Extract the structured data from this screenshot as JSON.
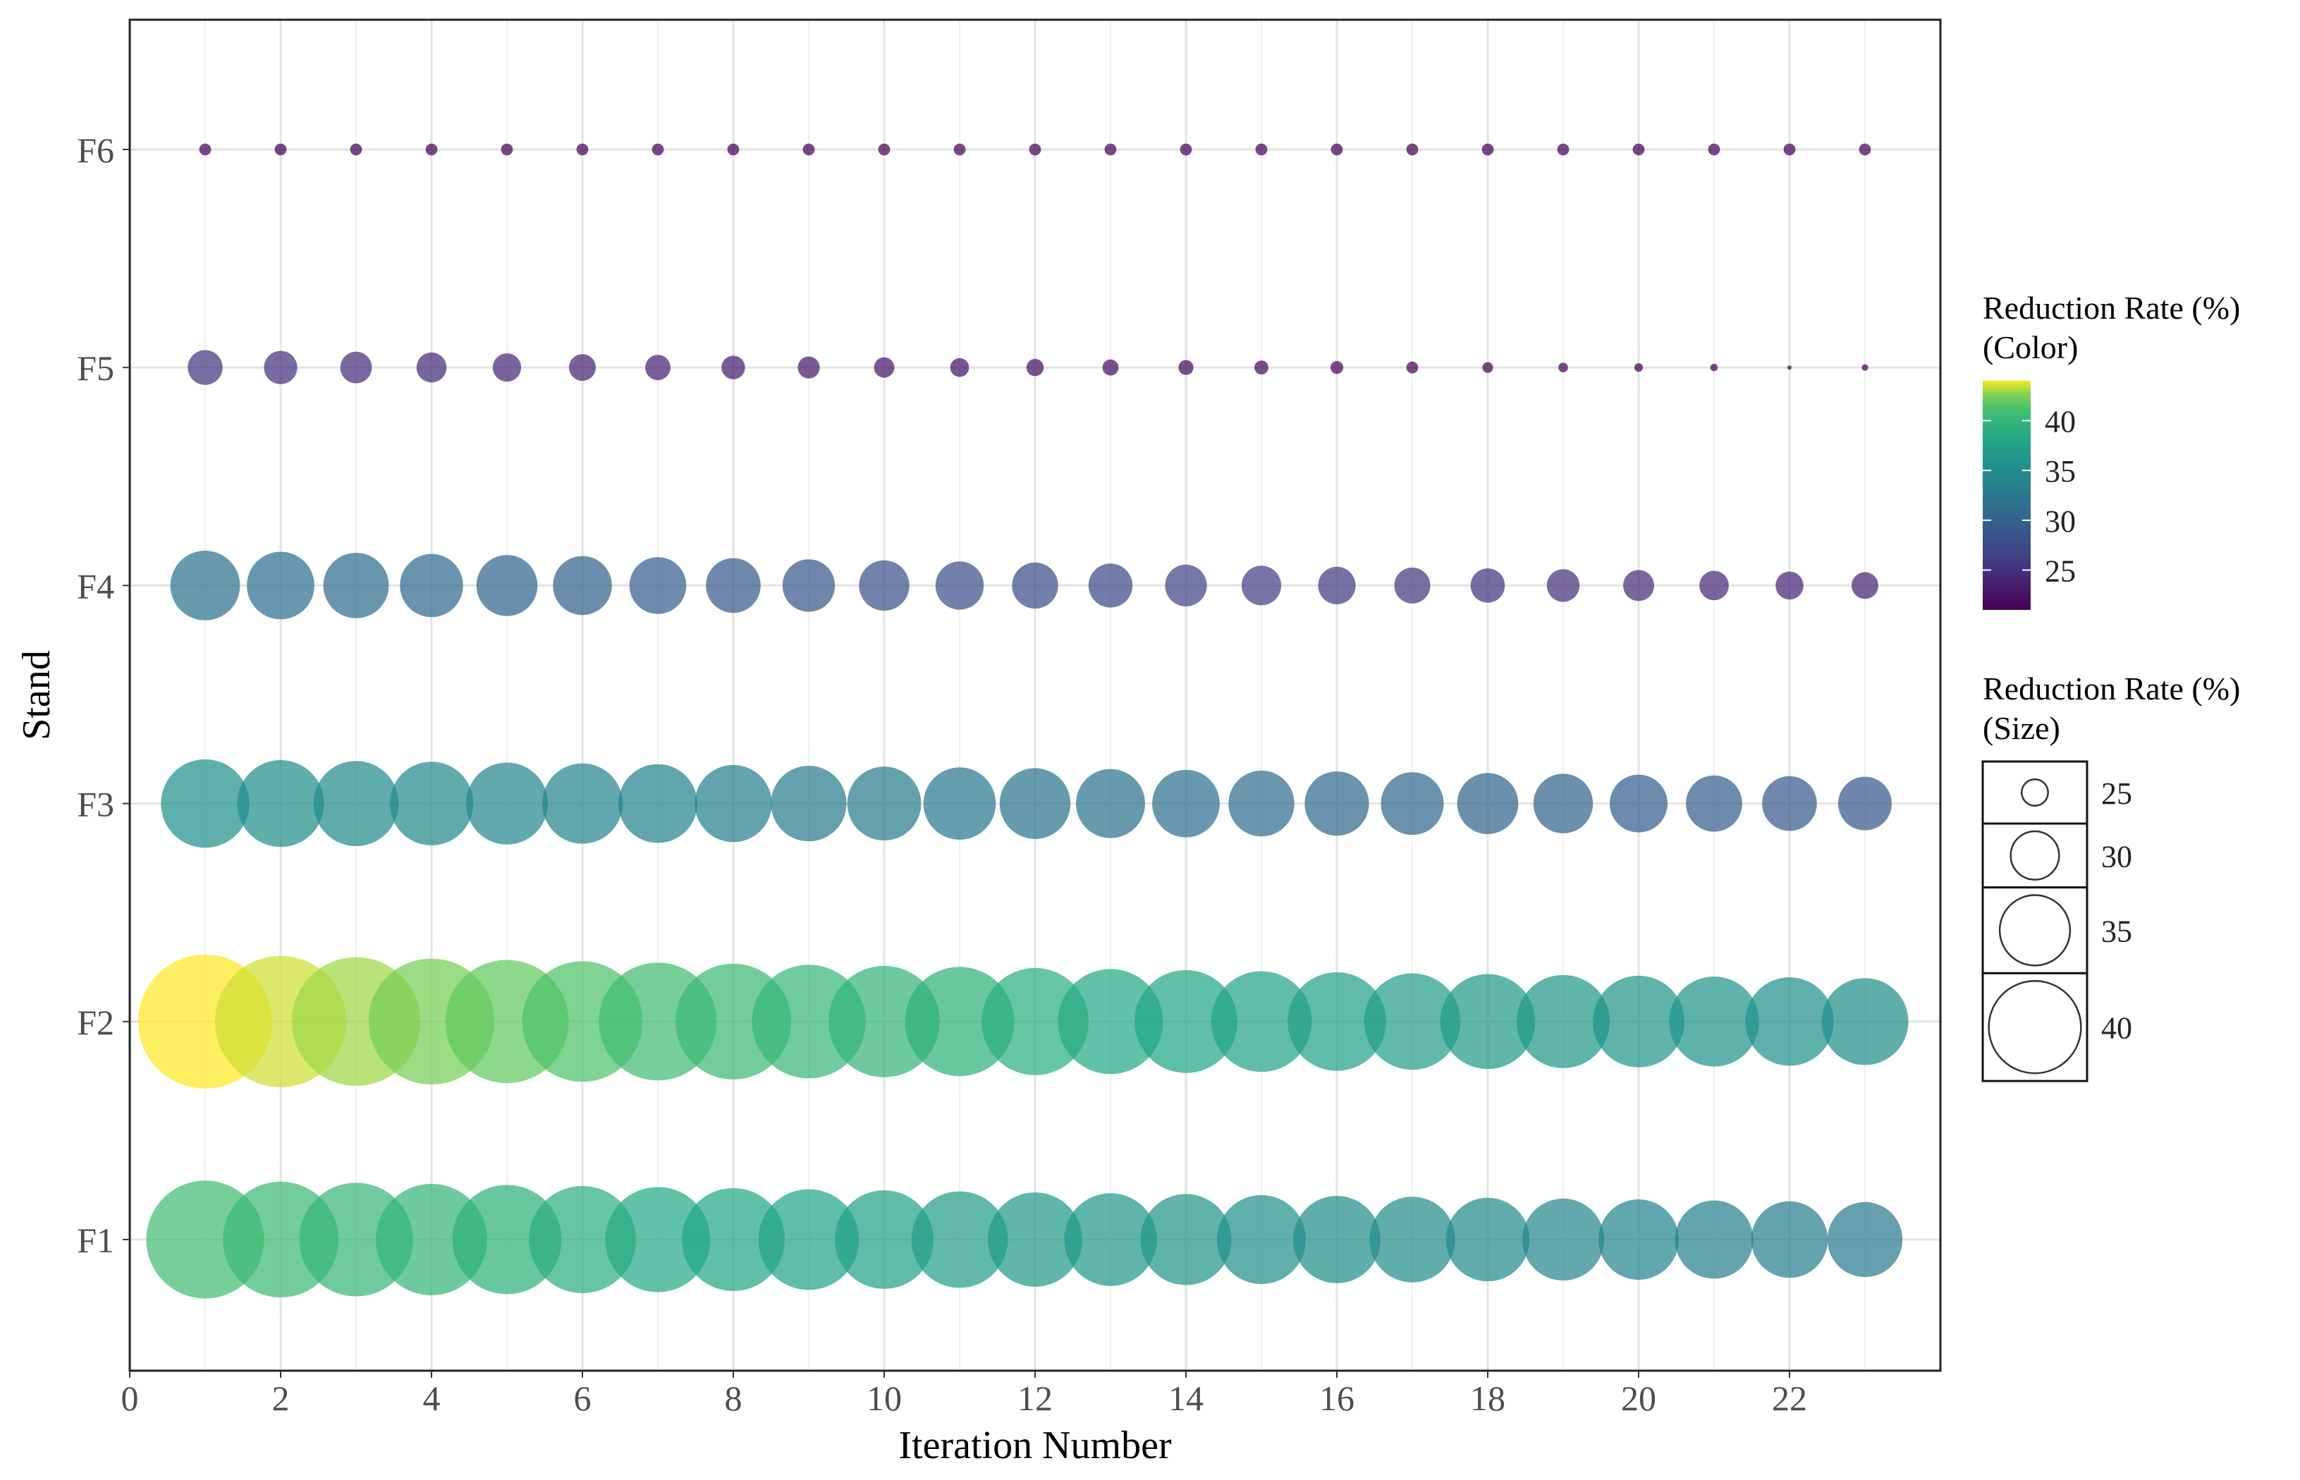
{
  "chart_data": {
    "type": "scatter",
    "title": "",
    "xlabel": "Iteration Number",
    "ylabel": "Stand",
    "xlim": [
      0,
      24
    ],
    "x_ticks": [
      0,
      2,
      4,
      6,
      8,
      10,
      12,
      14,
      16,
      18,
      20,
      22
    ],
    "categories": [
      "F1",
      "F2",
      "F3",
      "F4",
      "F5",
      "F6"
    ],
    "grid": true,
    "legend_position": "right",
    "color_scale": {
      "title_line1": "Reduction Rate (%)",
      "title_line2": "(Color)",
      "palette": "viridis",
      "range": [
        21,
        44
      ],
      "ticks": [
        25,
        30,
        35,
        40
      ]
    },
    "size_scale": {
      "title_line1": "Reduction Rate (%)",
      "title_line2": "(Size)",
      "breaks": [
        25,
        30,
        35,
        40
      ]
    },
    "series": [
      {
        "stand": "F1",
        "x": [
          1,
          2,
          3,
          4,
          5,
          6,
          7,
          8,
          9,
          10,
          11,
          12,
          13,
          14,
          15,
          16,
          17,
          18,
          19,
          20,
          21,
          22,
          23
        ],
        "values": [
          41.0,
          40.6,
          40.2,
          39.8,
          39.4,
          39.0,
          38.6,
          38.2,
          37.8,
          37.4,
          37.0,
          36.6,
          36.3,
          36.0,
          35.6,
          35.3,
          35.0,
          34.6,
          34.3,
          34.0,
          33.6,
          33.3,
          33.0
        ]
      },
      {
        "stand": "F2",
        "x": [
          1,
          2,
          3,
          4,
          5,
          6,
          7,
          8,
          9,
          10,
          11,
          12,
          13,
          14,
          15,
          16,
          17,
          18,
          19,
          20,
          21,
          22,
          23
        ],
        "values": [
          44.0,
          43.5,
          43.0,
          42.5,
          42.0,
          41.5,
          41.0,
          40.6,
          40.2,
          39.8,
          39.4,
          39.0,
          38.6,
          38.2,
          37.8,
          37.4,
          37.0,
          36.7,
          36.4,
          36.1,
          35.8,
          35.5,
          35.2
        ]
      },
      {
        "stand": "F3",
        "x": [
          1,
          2,
          3,
          4,
          5,
          6,
          7,
          8,
          9,
          10,
          11,
          12,
          13,
          14,
          15,
          16,
          17,
          18,
          19,
          20,
          21,
          22,
          23
        ],
        "values": [
          35.5,
          35.2,
          34.9,
          34.6,
          34.3,
          34.0,
          33.7,
          33.4,
          33.1,
          32.8,
          32.5,
          32.2,
          31.9,
          31.6,
          31.3,
          31.0,
          30.7,
          30.4,
          30.1,
          29.8,
          29.5,
          29.2,
          29.0
        ]
      },
      {
        "stand": "F4",
        "x": [
          1,
          2,
          3,
          4,
          5,
          6,
          7,
          8,
          9,
          10,
          11,
          12,
          13,
          14,
          15,
          16,
          17,
          18,
          19,
          20,
          21,
          22,
          23
        ],
        "values": [
          32.0,
          31.6,
          31.2,
          30.8,
          30.4,
          30.0,
          29.6,
          29.2,
          28.8,
          28.4,
          28.0,
          27.6,
          27.2,
          26.8,
          26.4,
          26.0,
          25.7,
          25.4,
          25.1,
          24.8,
          24.5,
          24.2,
          24.0
        ]
      },
      {
        "stand": "F5",
        "x": [
          1,
          2,
          3,
          4,
          5,
          6,
          7,
          8,
          9,
          10,
          11,
          12,
          13,
          14,
          15,
          16,
          17,
          18,
          19,
          20,
          21,
          22,
          23
        ],
        "values": [
          25.5,
          25.2,
          24.9,
          24.6,
          24.3,
          24.0,
          23.7,
          23.4,
          23.1,
          22.8,
          22.5,
          22.2,
          22.0,
          21.8,
          21.6,
          21.4,
          21.2,
          21.0,
          20.8,
          20.6,
          20.4,
          19.8,
          20.2
        ]
      },
      {
        "stand": "F6",
        "x": [
          1,
          2,
          3,
          4,
          5,
          6,
          7,
          8,
          9,
          10,
          11,
          12,
          13,
          14,
          15,
          16,
          17,
          18,
          19,
          20,
          21,
          22,
          23
        ],
        "values": [
          21.2,
          21.2,
          21.2,
          21.2,
          21.2,
          21.2,
          21.2,
          21.2,
          21.2,
          21.2,
          21.2,
          21.2,
          21.2,
          21.2,
          21.2,
          21.2,
          21.2,
          21.2,
          21.2,
          21.2,
          21.2,
          21.2,
          21.2
        ]
      }
    ]
  }
}
